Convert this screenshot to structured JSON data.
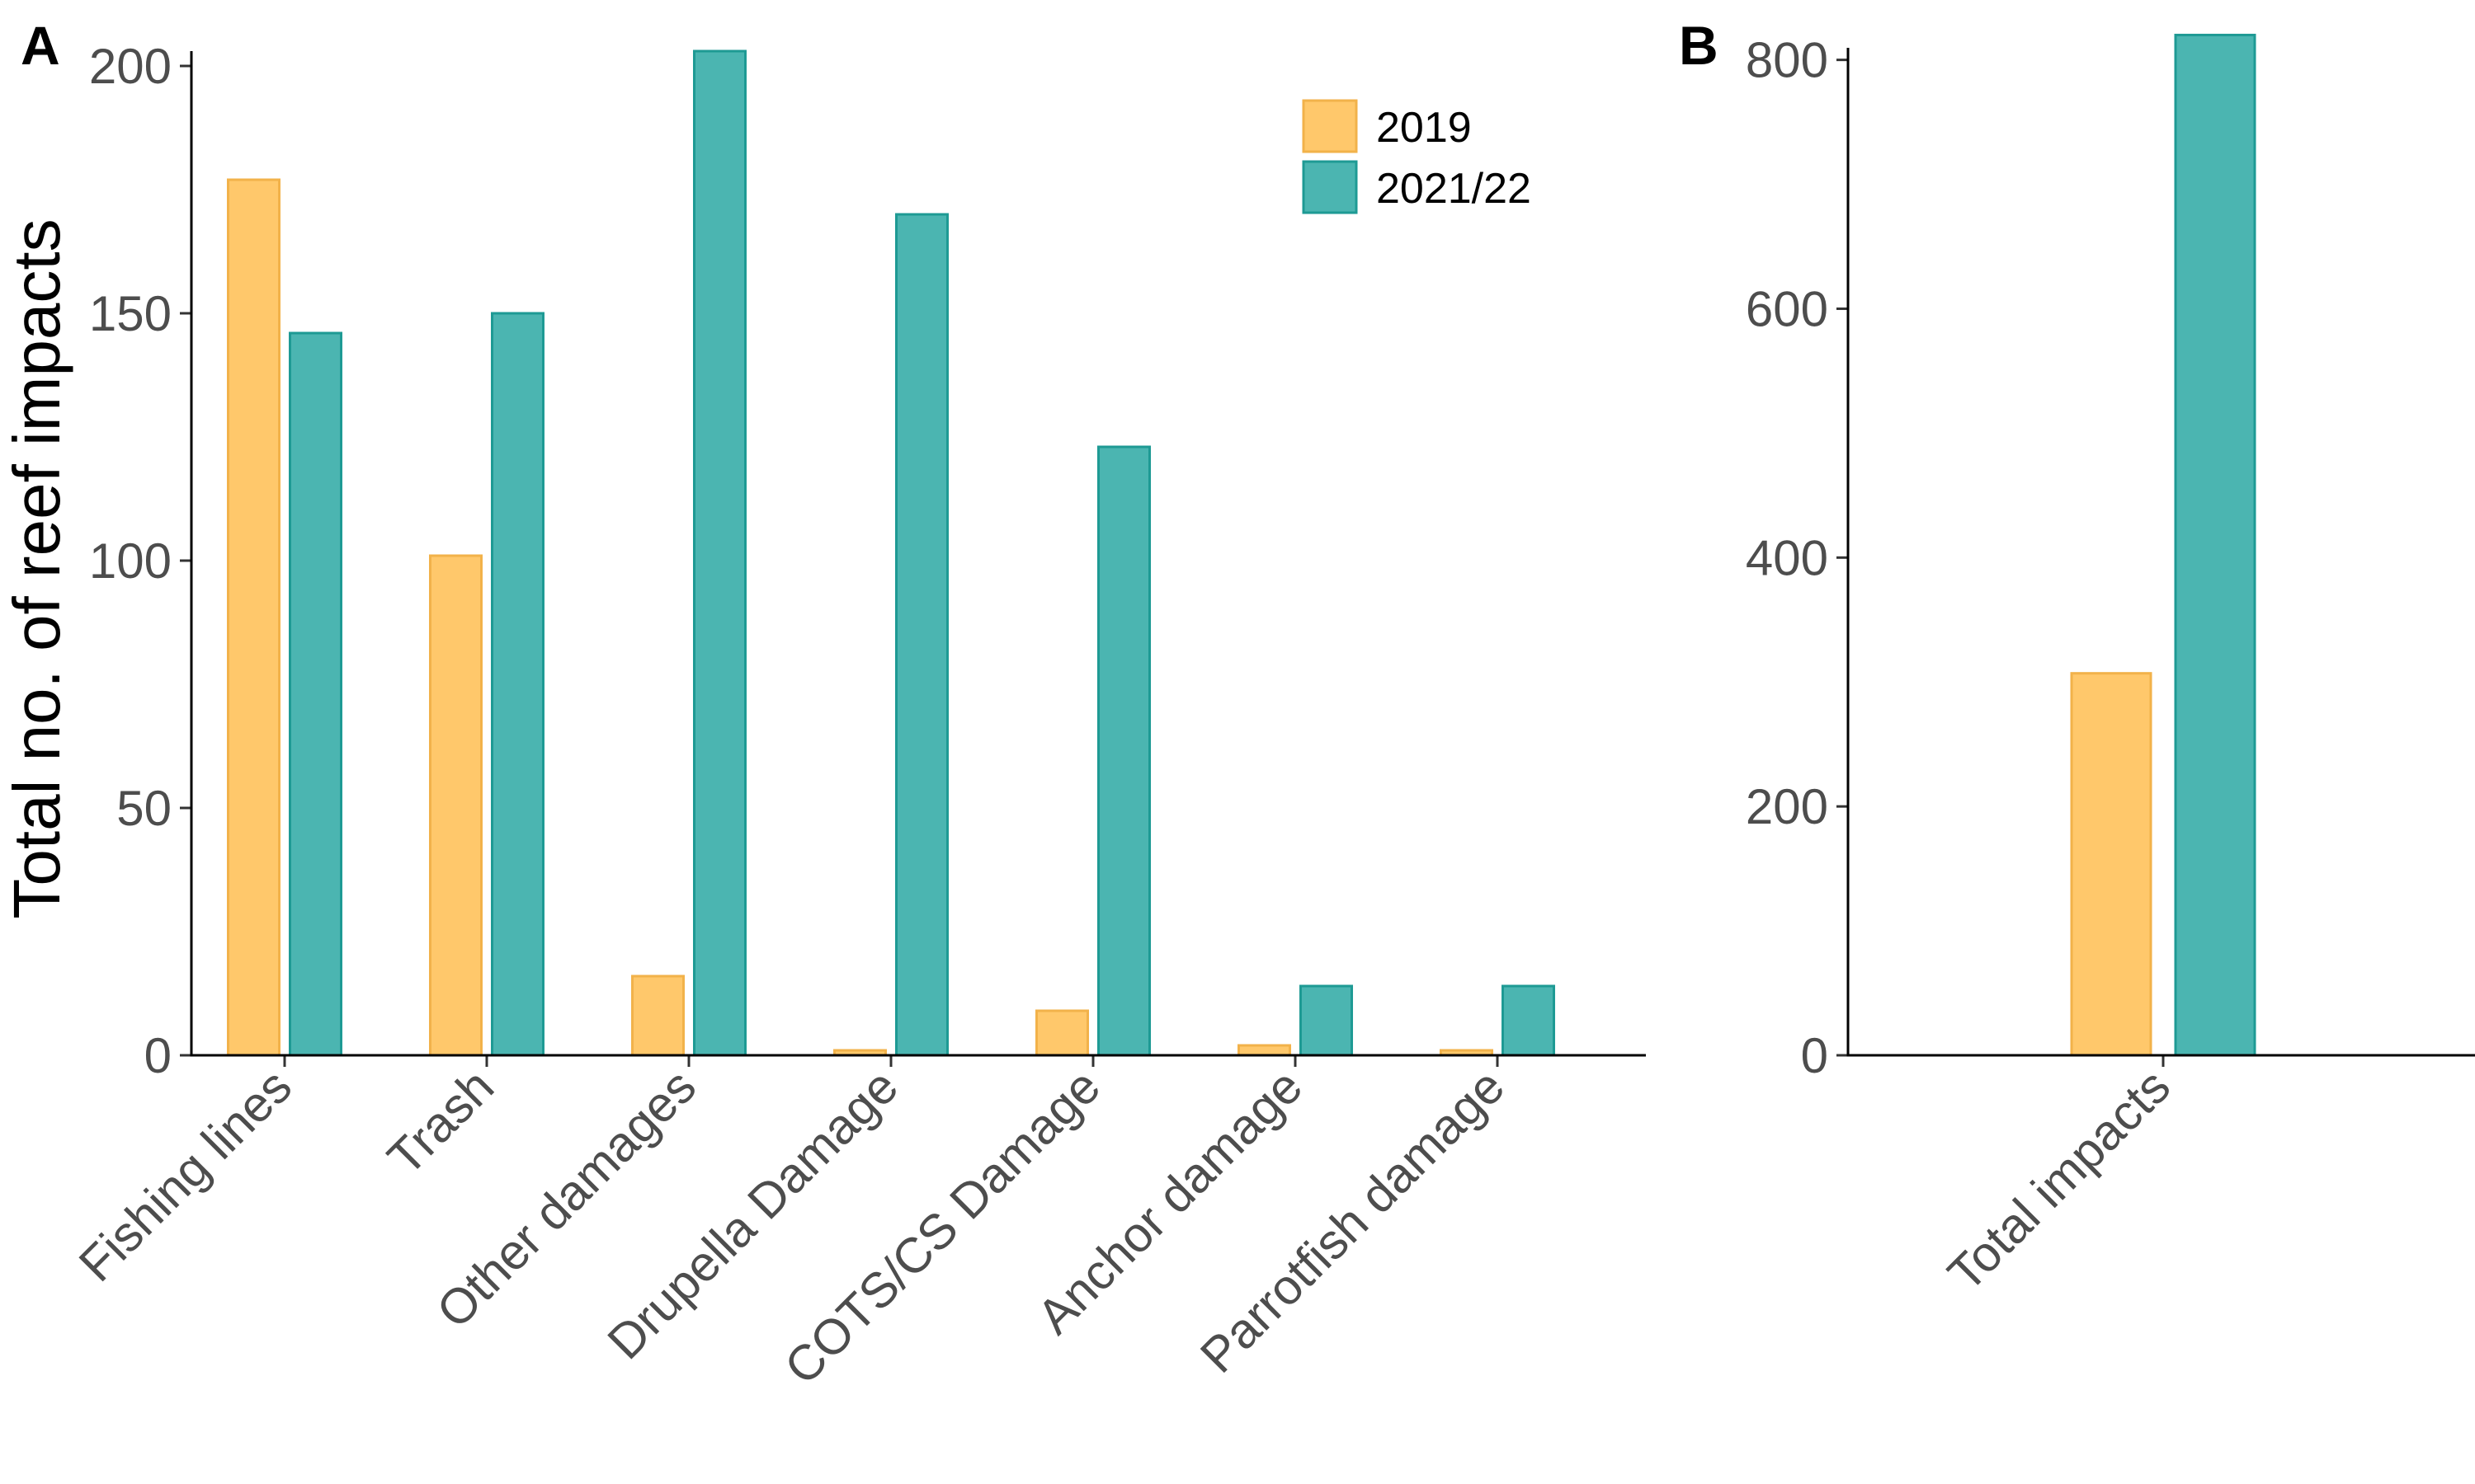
{
  "colors": {
    "2019": "#FFC86B",
    "2019_stroke": "#F2B24A",
    "2021/22": "#4BB5B1",
    "2021/22_stroke": "#1E9A94"
  },
  "chart_data": [
    {
      "panel": "A",
      "type": "bar",
      "ylabel": "Total no. of reef impacts",
      "xlabel": "",
      "ylim": [
        0,
        205
      ],
      "yticks": [
        0,
        50,
        100,
        150,
        200
      ],
      "categories": [
        "Fishing lines",
        "Trash",
        "Other damages",
        "Drupella Damage",
        "COTS/CS Damage",
        "Anchor damage",
        "Parrotfish damage"
      ],
      "series": [
        {
          "name": "2019",
          "values": [
            177,
            101,
            16,
            1,
            9,
            2,
            1
          ]
        },
        {
          "name": "2021/22",
          "values": [
            146,
            150,
            203,
            170,
            123,
            14,
            14
          ]
        }
      ],
      "legend": {
        "position": "top-right",
        "entries": [
          "2019",
          "2021/22"
        ]
      },
      "grid": false
    },
    {
      "panel": "B",
      "type": "bar",
      "ylabel": "",
      "xlabel": "",
      "ylim": [
        0,
        815
      ],
      "yticks": [
        0,
        200,
        400,
        600,
        800
      ],
      "categories": [
        "Total impacts"
      ],
      "series": [
        {
          "name": "2019",
          "values": [
            307
          ]
        },
        {
          "name": "2021/22",
          "values": [
            820
          ]
        }
      ],
      "grid": false
    }
  ]
}
